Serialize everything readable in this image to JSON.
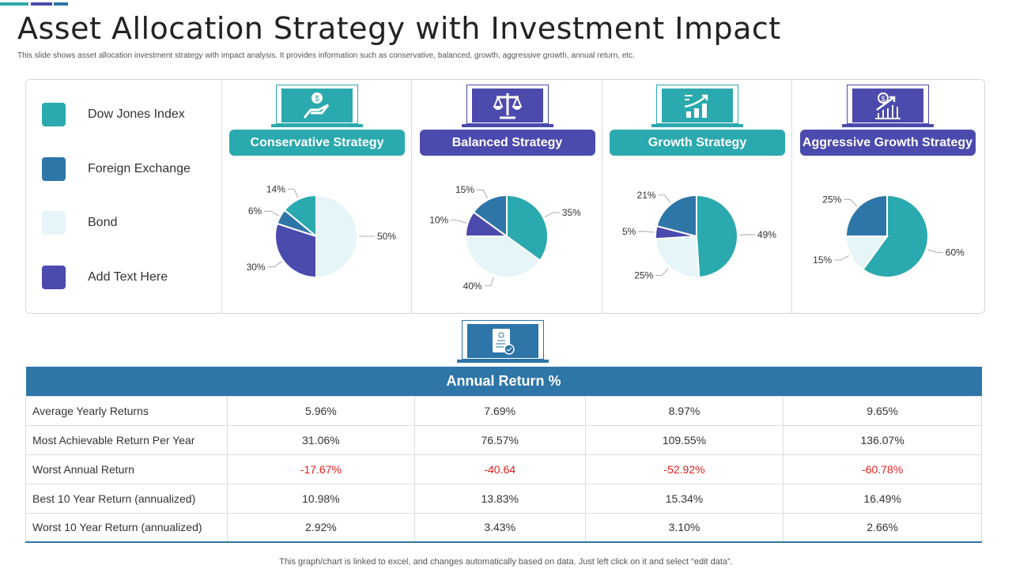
{
  "title": "Asset Allocation Strategy with Investment Impact",
  "subtitle": "This slide shows asset allocation investment strategy with impact analysis. It provides information such as conservative, balanced, growth, aggressive growth, annual return, etc.",
  "colors": {
    "dow": "#2aa9ae",
    "foreign": "#2e75a8",
    "bond": "#e6f5f7",
    "add": "#4b4aad"
  },
  "legend": [
    {
      "label": "Dow Jones Index",
      "color": "#2aa9ae"
    },
    {
      "label": "Foreign Exchange",
      "color": "#2e75a8"
    },
    {
      "label": "Bond",
      "color": "#e6f5f7"
    },
    {
      "label": "Add Text Here",
      "color": "#4b4aad"
    }
  ],
  "chart_data": [
    {
      "type": "pie",
      "title": "Conservative Strategy",
      "icon": "hand-dollar-icon",
      "accent": "#2aa9ae",
      "slices": [
        {
          "category": "Bond",
          "value": 50
        },
        {
          "category": "Add Text Here",
          "value": 30
        },
        {
          "category": "Foreign Exchange",
          "value": 6
        },
        {
          "category": "Dow Jones Index",
          "value": 14
        }
      ]
    },
    {
      "type": "pie",
      "title": "Balanced Strategy",
      "icon": "scales-icon",
      "accent": "#4b4aad",
      "slices": [
        {
          "category": "Dow Jones Index",
          "value": 35
        },
        {
          "category": "Bond",
          "value": 40
        },
        {
          "category": "Add Text Here",
          "value": 10
        },
        {
          "category": "Foreign Exchange",
          "value": 15
        }
      ]
    },
    {
      "type": "pie",
      "title": "Growth Strategy",
      "icon": "growth-chart-icon",
      "accent": "#2aa9ae",
      "slices": [
        {
          "category": "Dow Jones Index",
          "value": 49
        },
        {
          "category": "Bond",
          "value": 25
        },
        {
          "category": "Add Text Here",
          "value": 5
        },
        {
          "category": "Foreign Exchange",
          "value": 21
        }
      ]
    },
    {
      "type": "pie",
      "title": "Aggressive Growth Strategy",
      "icon": "dollar-growth-icon",
      "accent": "#4b4aad",
      "slices": [
        {
          "category": "Dow Jones Index",
          "value": 60
        },
        {
          "category": "Bond",
          "value": 15
        },
        {
          "category": "Foreign Exchange",
          "value": 25
        }
      ]
    }
  ],
  "table": {
    "header": "Annual Return %",
    "rows": [
      {
        "label": "Average Yearly Returns",
        "values": [
          "5.96%",
          "7.69%",
          "8.97%",
          "9.65%"
        ]
      },
      {
        "label": "Most Achievable Return Per Year",
        "values": [
          "31.06%",
          "76.57%",
          "109.55%",
          "136.07%"
        ]
      },
      {
        "label": "Worst Annual Return",
        "values": [
          "-17.67%",
          "-40.64",
          "-52.92%",
          "-60.78%"
        ],
        "negative": true
      },
      {
        "label": "Best 10 Year Return (annualized)",
        "values": [
          "10.98%",
          "13.83%",
          "15.34%",
          "16.49%"
        ]
      },
      {
        "label": "Worst 10 Year Return (annualized)",
        "values": [
          "2.92%",
          "3.43%",
          "3.10%",
          "2.66%"
        ]
      }
    ]
  },
  "footer": "This graph/chart is linked to excel, and changes automatically based on data. Just left click on it and select “edit data”."
}
